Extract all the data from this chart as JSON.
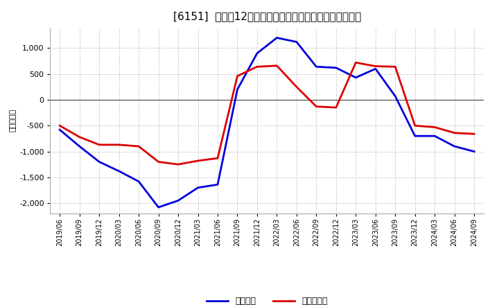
{
  "title": "[6151]  利益の12か月移動合計の対前年同期増減額の推移",
  "ylabel": "（百万円）",
  "background_color": "#ffffff",
  "plot_background_color": "#ffffff",
  "grid_color": "#aaaaaa",
  "x_labels": [
    "2019/06",
    "2019/09",
    "2019/12",
    "2020/03",
    "2020/06",
    "2020/09",
    "2020/12",
    "2021/03",
    "2021/06",
    "2021/09",
    "2021/12",
    "2022/03",
    "2022/06",
    "2022/09",
    "2022/12",
    "2023/03",
    "2023/06",
    "2023/09",
    "2023/12",
    "2024/03",
    "2024/06",
    "2024/09"
  ],
  "operating_profit": [
    -580,
    -900,
    -1200,
    -1380,
    -1580,
    -2080,
    -1950,
    -1700,
    -1640,
    200,
    900,
    1200,
    1120,
    640,
    620,
    430,
    600,
    70,
    -700,
    -700,
    -900,
    -1000
  ],
  "net_profit": [
    -500,
    -720,
    -870,
    -870,
    -900,
    -1200,
    -1250,
    -1180,
    -1130,
    460,
    640,
    660,
    250,
    -130,
    -150,
    720,
    650,
    640,
    -500,
    -530,
    -640,
    -660
  ],
  "operating_profit_color": "#0000dd",
  "net_profit_color": "#dd0000",
  "ylim": [
    -2200,
    1400
  ],
  "yticks": [
    -2000,
    -1500,
    -1000,
    -500,
    0,
    500,
    1000
  ],
  "legend_labels": [
    "経常利益",
    "当期純利益"
  ],
  "line_width": 2.0,
  "title_fontsize": 11,
  "tick_fontsize": 7,
  "ylabel_fontsize": 8,
  "legend_fontsize": 9
}
